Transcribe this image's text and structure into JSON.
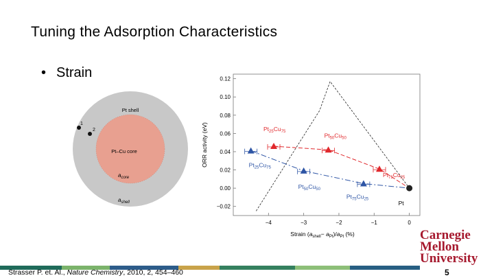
{
  "slide": {
    "title": "Tuning the Adsorption Characteristics",
    "bullet": "Strain",
    "page_number": "5",
    "citation_prefix": "Strasser P. et. Al., ",
    "citation_journal": "Nature Chemistry",
    "citation_suffix": ", 2010, 2, 454–460",
    "logo_lines": [
      "Carnegie",
      "Mellon",
      "University"
    ],
    "logo_color": "#a6192e"
  },
  "core_shell_diagram": {
    "shell_label": "Pt shell",
    "core_label": "Pt–Cu core",
    "a_core_label": "a",
    "a_core_sub": "core",
    "a_shell_label": "a",
    "a_shell_sub": "shell",
    "marker_1": "1",
    "marker_2": "2",
    "shell_color": "#c8c8c8",
    "core_color": "#e8a090"
  },
  "chart_data": {
    "type": "scatter",
    "xlabel": "Strain (a_shell − a_Pt)/a_Pt (%)",
    "ylabel": "ORR activity (eV)",
    "xlim": [
      -5,
      0.3
    ],
    "ylim": [
      -0.03,
      0.125
    ],
    "xticks": [
      {
        "value": -4,
        "label": "−4"
      },
      {
        "value": -3,
        "label": "−3"
      },
      {
        "value": -2,
        "label": "−2"
      },
      {
        "value": -1,
        "label": "−1"
      },
      {
        "value": 0,
        "label": "0"
      }
    ],
    "yticks": [
      {
        "value": 0.12,
        "label": "0.12"
      },
      {
        "value": 0.1,
        "label": "0.10"
      },
      {
        "value": 0.08,
        "label": "0.08"
      },
      {
        "value": 0.06,
        "label": "0.06"
      },
      {
        "value": 0.04,
        "label": "0.04"
      },
      {
        "value": 0.02,
        "label": "0.02"
      },
      {
        "value": 0.0,
        "label": "0.00"
      },
      {
        "value": -0.02,
        "label": "−0.02"
      }
    ],
    "volcano": [
      [
        -4.35,
        -0.025
      ],
      [
        -2.55,
        0.085
      ],
      [
        -2.25,
        0.117
      ],
      [
        0,
        0
      ]
    ],
    "series": [
      {
        "color": "#e0282c",
        "points": [
          {
            "x": -3.85,
            "y": 0.046,
            "label": "Pt25Cu75",
            "base": "Pt",
            "sub1": "25",
            "mid": "Cu",
            "sub2": "75"
          },
          {
            "x": -2.3,
            "y": 0.042,
            "label": "Pt50Cu50",
            "base": "Pt",
            "sub1": "50",
            "mid": "Cu",
            "sub2": "50"
          },
          {
            "x": -0.85,
            "y": 0.021,
            "label": "Pt75Cu25",
            "base": "Pt",
            "sub1": "75",
            "mid": "Cu",
            "sub2": "25"
          }
        ]
      },
      {
        "color": "#2e55a5",
        "points": [
          {
            "x": -4.5,
            "y": 0.041,
            "label": "Pt25Cu75",
            "base": "Pt",
            "sub1": "25",
            "mid": "Cu",
            "sub2": "75"
          },
          {
            "x": -3.0,
            "y": 0.019,
            "label": "Pt50Cu50",
            "base": "Pt",
            "sub1": "50",
            "mid": "Cu",
            "sub2": "50"
          },
          {
            "x": -1.3,
            "y": 0.005,
            "label": "Pt75Cu25",
            "base": "Pt",
            "sub1": "75",
            "mid": "Cu",
            "sub2": "25"
          }
        ]
      }
    ],
    "reference_point": {
      "x": 0,
      "y": 0,
      "label": "Pt",
      "color": "#222222"
    }
  }
}
